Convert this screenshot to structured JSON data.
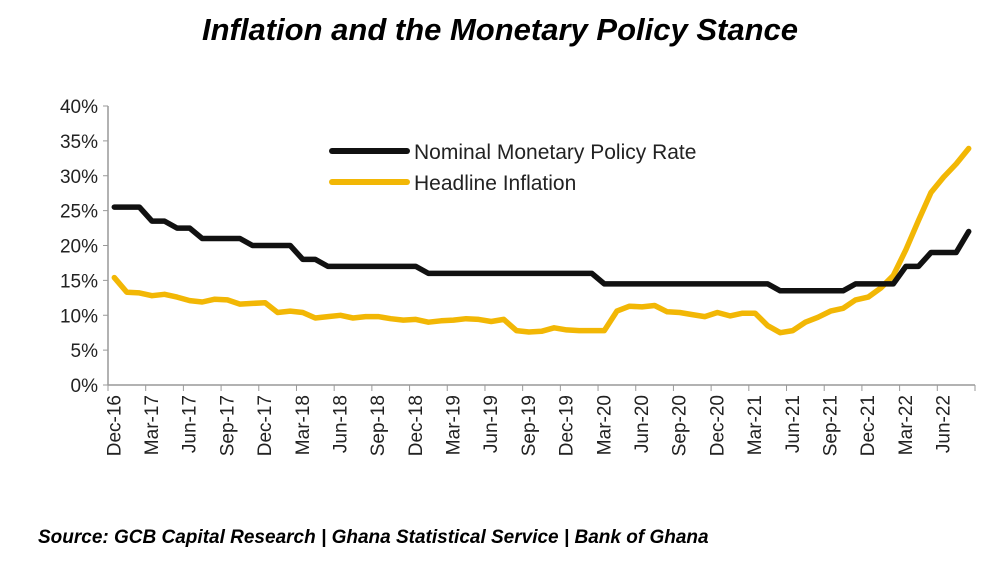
{
  "chart_data": {
    "type": "line",
    "title": "Inflation and the Monetary Policy Stance",
    "source": "Source: GCB Capital Research | Ghana Statistical Service | Bank of Ghana",
    "xlabel": "",
    "ylabel": "",
    "ylim": [
      0,
      40
    ],
    "yticks": [
      "0%",
      "5%",
      "10%",
      "15%",
      "20%",
      "25%",
      "30%",
      "35%",
      "40%"
    ],
    "ytick_values": [
      0,
      5,
      10,
      15,
      20,
      25,
      30,
      35,
      40
    ],
    "x": [
      "Dec-16",
      "Jan-17",
      "Feb-17",
      "Mar-17",
      "Apr-17",
      "May-17",
      "Jun-17",
      "Jul-17",
      "Aug-17",
      "Sep-17",
      "Oct-17",
      "Nov-17",
      "Dec-17",
      "Jan-18",
      "Feb-18",
      "Mar-18",
      "Apr-18",
      "May-18",
      "Jun-18",
      "Jul-18",
      "Aug-18",
      "Sep-18",
      "Oct-18",
      "Nov-18",
      "Dec-18",
      "Jan-19",
      "Feb-19",
      "Mar-19",
      "Apr-19",
      "May-19",
      "Jun-19",
      "Jul-19",
      "Aug-19",
      "Sep-19",
      "Oct-19",
      "Nov-19",
      "Dec-19",
      "Jan-20",
      "Feb-20",
      "Mar-20",
      "Apr-20",
      "May-20",
      "Jun-20",
      "Jul-20",
      "Aug-20",
      "Sep-20",
      "Oct-20",
      "Nov-20",
      "Dec-20",
      "Jan-21",
      "Feb-21",
      "Mar-21",
      "Apr-21",
      "May-21",
      "Jun-21",
      "Jul-21",
      "Aug-21",
      "Sep-21",
      "Oct-21",
      "Nov-21",
      "Dec-21",
      "Jan-22",
      "Feb-22",
      "Mar-22",
      "Apr-22",
      "May-22",
      "Jun-22",
      "Jul-22",
      "Aug-22"
    ],
    "xtick_labels": [
      "Dec-16",
      "Mar-17",
      "Jun-17",
      "Sep-17",
      "Dec-17",
      "Mar-18",
      "Jun-18",
      "Sep-18",
      "Dec-18",
      "Mar-19",
      "Jun-19",
      "Sep-19",
      "Dec-19",
      "Mar-20",
      "Jun-20",
      "Sep-20",
      "Dec-20",
      "Mar-21",
      "Jun-21",
      "Sep-21",
      "Dec-21",
      "Mar-22",
      "Jun-22"
    ],
    "series": [
      {
        "name": "Nominal Monetary Policy Rate",
        "color": "#111111",
        "values": [
          25.5,
          25.5,
          25.5,
          23.5,
          23.5,
          22.5,
          22.5,
          21,
          21,
          21,
          21,
          20,
          20,
          20,
          20,
          18,
          18,
          17,
          17,
          17,
          17,
          17,
          17,
          17,
          17,
          16,
          16,
          16,
          16,
          16,
          16,
          16,
          16,
          16,
          16,
          16,
          16,
          16,
          16,
          14.5,
          14.5,
          14.5,
          14.5,
          14.5,
          14.5,
          14.5,
          14.5,
          14.5,
          14.5,
          14.5,
          14.5,
          14.5,
          14.5,
          13.5,
          13.5,
          13.5,
          13.5,
          13.5,
          13.5,
          14.5,
          14.5,
          14.5,
          14.5,
          17,
          17,
          19,
          19,
          19,
          22
        ]
      },
      {
        "name": "Headline Inflation",
        "color": "#f2b705",
        "values": [
          15.4,
          13.3,
          13.2,
          12.8,
          13.0,
          12.6,
          12.1,
          11.9,
          12.3,
          12.2,
          11.6,
          11.7,
          11.8,
          10.4,
          10.6,
          10.4,
          9.6,
          9.8,
          10.0,
          9.6,
          9.8,
          9.8,
          9.5,
          9.3,
          9.4,
          9.0,
          9.2,
          9.3,
          9.5,
          9.4,
          9.1,
          9.4,
          7.8,
          7.6,
          7.7,
          8.2,
          7.9,
          7.8,
          7.8,
          7.8,
          10.6,
          11.3,
          11.2,
          11.4,
          10.5,
          10.4,
          10.1,
          9.8,
          10.4,
          9.9,
          10.3,
          10.3,
          8.5,
          7.5,
          7.8,
          9.0,
          9.7,
          10.6,
          11.0,
          12.2,
          12.6,
          13.9,
          15.7,
          19.4,
          23.6,
          27.6,
          29.8,
          31.7,
          33.9
        ]
      }
    ],
    "legend": "top-center"
  }
}
